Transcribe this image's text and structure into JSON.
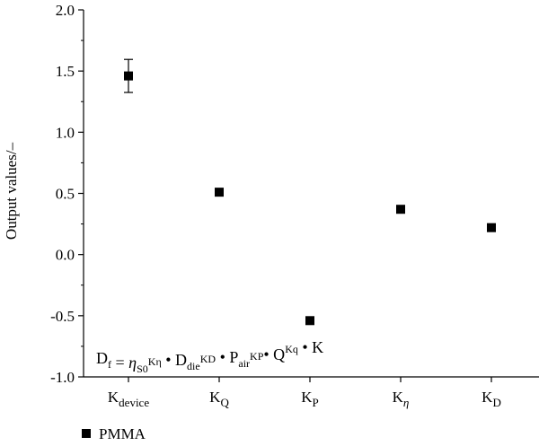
{
  "chart_data": {
    "type": "scatter",
    "ylabel": "Output values/–",
    "ylim": [
      -1.0,
      2.0
    ],
    "yticks": [
      "2.0",
      "1.5",
      "1.0",
      "0.5",
      "0.0",
      "-0.5",
      "-1.0"
    ],
    "ytick_values": [
      2.0,
      1.5,
      1.0,
      0.5,
      0.0,
      -0.5,
      -1.0
    ],
    "categories": [
      {
        "main": "K",
        "sub": "device"
      },
      {
        "main": "K",
        "sub": "Q"
      },
      {
        "main": "K",
        "sub": "P"
      },
      {
        "main": "K",
        "sub": "η"
      },
      {
        "main": "K",
        "sub": "D"
      }
    ],
    "series": [
      {
        "name": "PMMA",
        "values": [
          1.46,
          0.51,
          -0.54,
          0.37,
          0.22
        ],
        "error": [
          0.135,
          null,
          null,
          null,
          null
        ],
        "color": "#000000",
        "marker": "square"
      }
    ],
    "annotation": {
      "parts": [
        {
          "t": "D",
          "sub": "f"
        },
        {
          "t": " = "
        },
        {
          "t": "η",
          "italic": true,
          "sub": "S0"
        },
        {
          "sup": "Kη"
        },
        {
          "t": " • D",
          "sub": "die"
        },
        {
          "sup": "KD"
        },
        {
          "t": " • P",
          "sub": "air"
        },
        {
          "sup": "KP"
        },
        {
          "t": "• Q"
        },
        {
          "sup": "Kq"
        },
        {
          "t": " • K"
        }
      ]
    },
    "legend_placement": "bottom-left",
    "grid": false
  }
}
